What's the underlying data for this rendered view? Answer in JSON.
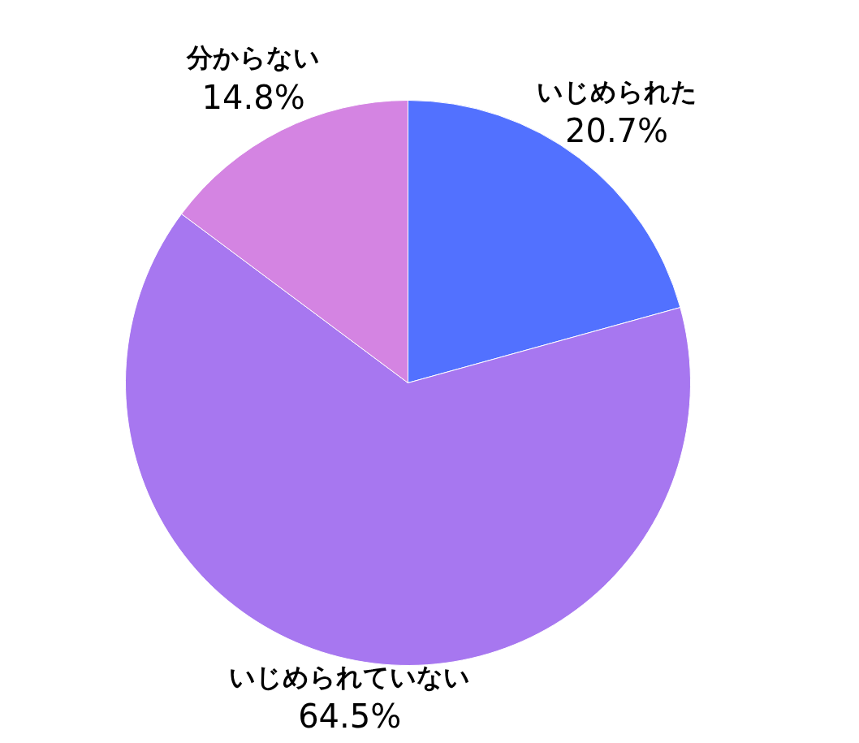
{
  "chart_data": {
    "type": "pie",
    "categories": [
      "いじめられた",
      "いじめられていない",
      "分からない"
    ],
    "values": [
      20.7,
      64.5,
      14.8
    ],
    "colors": [
      "#5271ff",
      "#a777f0",
      "#d484e2"
    ],
    "value_labels": [
      "20.7%",
      "64.5%",
      "14.8%"
    ]
  }
}
